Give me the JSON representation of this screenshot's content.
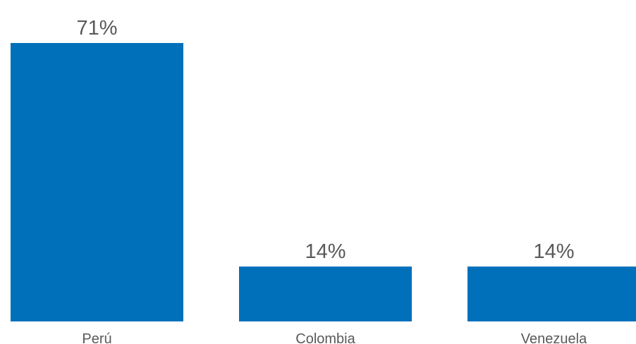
{
  "chart_data": {
    "type": "bar",
    "title": "",
    "xlabel": "",
    "ylabel": "",
    "categories": [
      "Perú",
      "Colombia",
      "Venezuela"
    ],
    "values": [
      71,
      14,
      14
    ],
    "value_labels": [
      "71%",
      "14%",
      "14%"
    ],
    "ylim": [
      0,
      71
    ],
    "grid": false,
    "legend": "none",
    "colors": {
      "bar": "#0070BA",
      "text": "#595959",
      "background": "#FFFFFF"
    }
  }
}
